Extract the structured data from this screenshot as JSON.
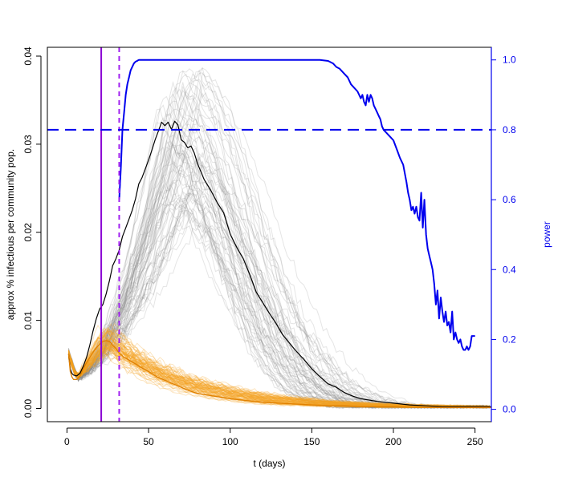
{
  "chart_data": {
    "type": "line",
    "xlabel": "t (days)",
    "ylabel_left": "approx % infectious per community pop.",
    "ylabel_right": "power",
    "xlim": [
      -12,
      260
    ],
    "ylim_left": [
      -0.0015,
      0.041
    ],
    "ylim_right": [
      -0.0353,
      1.0361
    ],
    "x_ticks": [
      0,
      50,
      100,
      150,
      200,
      250
    ],
    "y_ticks_left": [
      0.0,
      0.01,
      0.02,
      0.03,
      0.04
    ],
    "y_tick_labels_left": [
      "0.00",
      "0.01",
      "0.02",
      "0.03",
      "0.04"
    ],
    "y_ticks_right": [
      0.0,
      0.2,
      0.4,
      0.6,
      0.8,
      1.0
    ],
    "y_tick_labels_right": [
      "0.0",
      "0.2",
      "0.4",
      "0.6",
      "0.8",
      "1.0"
    ],
    "grid": false,
    "legend": "none",
    "colors": {
      "gray_traces": "#888888",
      "orange_traces": "#f5a020",
      "black_line": "#000000",
      "orange_line": "#e08000",
      "power": "#0000ee",
      "vline_solid": "#8a00d4",
      "vline_dashed": "#a020f0",
      "hline_dashed": "#0000ee",
      "right_axis": "#0000ee"
    },
    "gray_ensemble": {
      "count": 70,
      "peak_day_range": [
        55,
        85
      ],
      "peak_value_range": [
        0.021,
        0.039
      ],
      "note": "bundle of faint gray trajectories"
    },
    "orange_ensemble": {
      "count": 70,
      "peak_day_range": [
        18,
        30
      ],
      "peak_value_range": [
        0.0065,
        0.0095
      ],
      "note": "bundle of faint orange trajectories"
    },
    "series": [
      {
        "axis": "left",
        "x": [
          1,
          2,
          3,
          4,
          6,
          8,
          10,
          12,
          14,
          16,
          18,
          20,
          22,
          24,
          26,
          28,
          30,
          32,
          34,
          36,
          38,
          40,
          42,
          44,
          46,
          48,
          50,
          52,
          54,
          56,
          58,
          60,
          62,
          64,
          66,
          68,
          70,
          72,
          74,
          76,
          78,
          80,
          84,
          88,
          92,
          96,
          100,
          104,
          108,
          112,
          116,
          120,
          124,
          128,
          132,
          136,
          140,
          145,
          150,
          155,
          160,
          165,
          170,
          175,
          180,
          190,
          200,
          210,
          220,
          230,
          240,
          250,
          260
        ],
        "values": [
          0.0062,
          0.0045,
          0.004,
          0.0038,
          0.0037,
          0.004,
          0.0048,
          0.0058,
          0.0072,
          0.0088,
          0.0102,
          0.0113,
          0.0118,
          0.013,
          0.0145,
          0.0162,
          0.017,
          0.018,
          0.0195,
          0.0205,
          0.0215,
          0.0225,
          0.0238,
          0.0255,
          0.0262,
          0.0272,
          0.0282,
          0.0293,
          0.0305,
          0.0315,
          0.0325,
          0.0321,
          0.0325,
          0.0317,
          0.0326,
          0.0322,
          0.0305,
          0.0302,
          0.0296,
          0.0298,
          0.029,
          0.0278,
          0.026,
          0.0248,
          0.0234,
          0.0222,
          0.0198,
          0.0183,
          0.017,
          0.0152,
          0.0132,
          0.012,
          0.0108,
          0.0097,
          0.0084,
          0.0075,
          0.0066,
          0.0056,
          0.0045,
          0.0036,
          0.0028,
          0.0024,
          0.0018,
          0.0014,
          0.0011,
          0.0008,
          0.0006,
          0.0004,
          0.0003,
          0.0002,
          0.0002,
          0.0002,
          0.0002
        ]
      },
      {
        "axis": "left",
        "x": [
          1,
          2,
          3,
          4,
          6,
          8,
          10,
          12,
          14,
          16,
          18,
          20,
          22,
          24,
          26,
          28,
          30,
          32,
          35,
          40,
          45,
          50,
          55,
          60,
          65,
          70,
          75,
          80,
          90,
          100,
          110,
          120,
          130,
          140,
          150,
          160,
          170,
          180,
          190,
          200,
          220,
          240,
          260
        ],
        "values": [
          0.0062,
          0.0042,
          0.0036,
          0.0033,
          0.0033,
          0.0037,
          0.0045,
          0.0052,
          0.0058,
          0.0064,
          0.0069,
          0.0073,
          0.0076,
          0.0077,
          0.0076,
          0.0072,
          0.0068,
          0.0063,
          0.0058,
          0.0053,
          0.0047,
          0.0042,
          0.0036,
          0.0032,
          0.0028,
          0.0024,
          0.002,
          0.0017,
          0.0014,
          0.0011,
          0.0009,
          0.0007,
          0.0006,
          0.0005,
          0.0004,
          0.0003,
          0.0003,
          0.0002,
          0.0002,
          0.0002,
          0.0001,
          0.0001,
          0.0001
        ]
      },
      {
        "axis": "right",
        "x": [
          32,
          33,
          34,
          35,
          36,
          37,
          38,
          39,
          40,
          41,
          42,
          43,
          44,
          46,
          50,
          60,
          80,
          100,
          120,
          140,
          155,
          160,
          163,
          165,
          167,
          170,
          172,
          174,
          176,
          178,
          180,
          181,
          182,
          183,
          184,
          185,
          186,
          187,
          188,
          189,
          190,
          191,
          192,
          193,
          194,
          195,
          196,
          198,
          200,
          202,
          204,
          206,
          208,
          209,
          210,
          211,
          212,
          213,
          214,
          215,
          216,
          217,
          218,
          219,
          220,
          221,
          222,
          223,
          224,
          225,
          226,
          227,
          228,
          229,
          230,
          231,
          232,
          233,
          234,
          235,
          236,
          237,
          238,
          239,
          240,
          241,
          242,
          243,
          244,
          245,
          246,
          247,
          248,
          249,
          250
        ],
        "values": [
          0.6,
          0.69,
          0.8,
          0.85,
          0.9,
          0.93,
          0.95,
          0.97,
          0.98,
          0.99,
          0.995,
          0.997,
          1.0,
          1.0,
          1.0,
          1.0,
          1.0,
          1.0,
          1.0,
          1.0,
          1.0,
          0.997,
          0.99,
          0.98,
          0.975,
          0.96,
          0.95,
          0.93,
          0.92,
          0.91,
          0.89,
          0.9,
          0.88,
          0.87,
          0.9,
          0.88,
          0.9,
          0.89,
          0.87,
          0.86,
          0.85,
          0.84,
          0.83,
          0.81,
          0.8,
          0.795,
          0.79,
          0.78,
          0.77,
          0.745,
          0.72,
          0.7,
          0.65,
          0.62,
          0.6,
          0.57,
          0.58,
          0.56,
          0.58,
          0.55,
          0.54,
          0.62,
          0.52,
          0.6,
          0.5,
          0.46,
          0.44,
          0.42,
          0.4,
          0.36,
          0.3,
          0.34,
          0.26,
          0.32,
          0.28,
          0.25,
          0.28,
          0.24,
          0.25,
          0.22,
          0.28,
          0.2,
          0.22,
          0.2,
          0.19,
          0.2,
          0.18,
          0.17,
          0.17,
          0.18,
          0.17,
          0.18,
          0.21,
          0.21,
          0.21
        ]
      }
    ],
    "vlines": [
      {
        "x": 21,
        "style": "solid"
      },
      {
        "x": 32,
        "style": "dashed"
      }
    ],
    "hlines": [
      {
        "axis": "right",
        "y": 0.8,
        "style": "dashed"
      }
    ]
  }
}
